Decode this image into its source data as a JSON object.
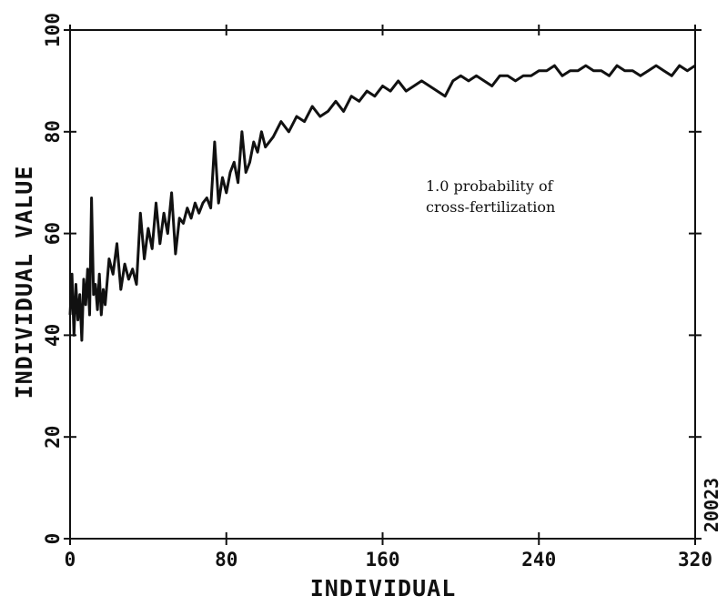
{
  "chart_data": {
    "type": "line",
    "title": "",
    "xlabel": "INDIVIDUAL",
    "ylabel": "INDIVIDUAL VALUE",
    "xlim": [
      0,
      320
    ],
    "ylim": [
      0,
      100
    ],
    "x_ticks": [
      0,
      80,
      160,
      240,
      320
    ],
    "y_ticks": [
      0,
      20,
      40,
      60,
      80,
      100
    ],
    "grid": false,
    "legend": "none",
    "annotation": [
      "1.0 probability of",
      "cross-fertilization"
    ],
    "figure_id": "20023",
    "line_color": "#111111",
    "series": [
      {
        "x": [
          0,
          1,
          2,
          3,
          4,
          5,
          6,
          7,
          8,
          9,
          10,
          11,
          12,
          13,
          14,
          15,
          16,
          17,
          18,
          20,
          22,
          24,
          26,
          28,
          30,
          32,
          34,
          36,
          38,
          40,
          42,
          44,
          46,
          48,
          50,
          52,
          54,
          56,
          58,
          60,
          62,
          64,
          66,
          68,
          70,
          72,
          74,
          76,
          78,
          80,
          82,
          84,
          86,
          88,
          90,
          92,
          94,
          96,
          98,
          100,
          104,
          108,
          112,
          116,
          120,
          124,
          128,
          132,
          136,
          140,
          144,
          148,
          152,
          156,
          160,
          164,
          168,
          172,
          176,
          180,
          184,
          188,
          192,
          196,
          200,
          204,
          208,
          212,
          216,
          220,
          224,
          228,
          232,
          236,
          240,
          244,
          248,
          252,
          256,
          260,
          264,
          268,
          272,
          276,
          280,
          284,
          288,
          292,
          296,
          300,
          304,
          308,
          312,
          316,
          320
        ],
        "values": [
          44,
          52,
          40,
          50,
          43,
          48,
          39,
          51,
          46,
          53,
          44,
          67,
          48,
          50,
          45,
          52,
          44,
          49,
          46,
          55,
          52,
          58,
          49,
          54,
          51,
          53,
          50,
          64,
          55,
          61,
          57,
          66,
          58,
          64,
          60,
          68,
          56,
          63,
          62,
          65,
          63,
          66,
          64,
          66,
          67,
          65,
          78,
          66,
          71,
          68,
          72,
          74,
          70,
          80,
          72,
          74,
          78,
          76,
          80,
          77,
          79,
          82,
          80,
          83,
          82,
          85,
          83,
          84,
          86,
          84,
          87,
          86,
          88,
          87,
          89,
          88,
          90,
          88,
          89,
          90,
          89,
          88,
          87,
          90,
          91,
          90,
          91,
          90,
          89,
          91,
          91,
          90,
          91,
          91,
          92,
          92,
          93,
          91,
          92,
          92,
          93,
          92,
          92,
          91,
          93,
          92,
          92,
          91,
          92,
          93,
          92,
          91,
          93,
          92,
          93
        ]
      }
    ]
  }
}
